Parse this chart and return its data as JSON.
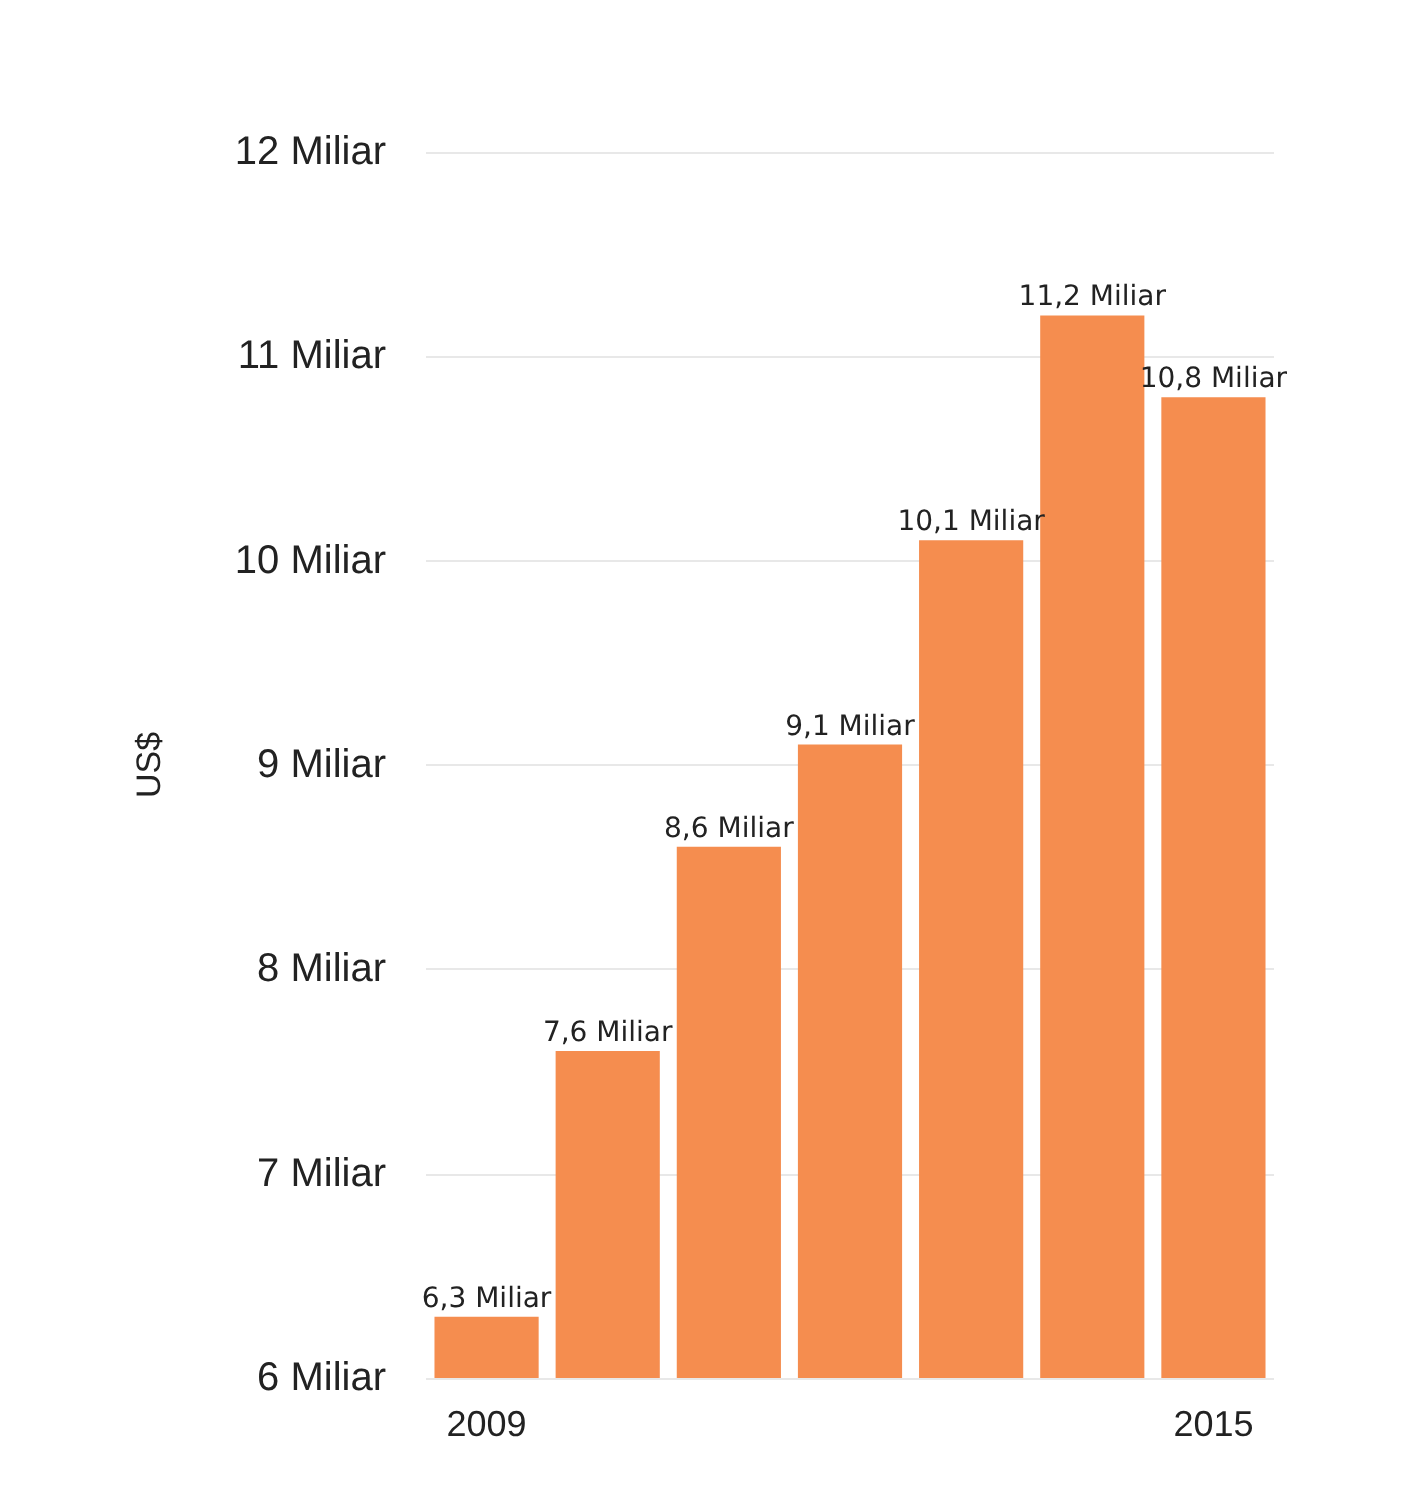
{
  "chart_data": {
    "type": "bar",
    "ylabel": "US$",
    "categories": [
      "2009",
      null,
      null,
      null,
      null,
      null,
      "2015"
    ],
    "values": [
      6.3,
      7.6,
      8.6,
      9.1,
      10.1,
      11.2,
      10.8
    ],
    "value_labels": [
      "6,3 Miliar",
      "7,6 Miliar",
      "8,6 Miliar",
      "9,1 Miliar",
      "10,1 Miliar",
      "11,2 Miliar",
      "10,8 Miliar"
    ],
    "color": "#f58d4f",
    "ylim": [
      6,
      12
    ],
    "yticks": [
      {
        "value": 6,
        "label": "6 Miliar"
      },
      {
        "value": 7,
        "label": "7 Miliar"
      },
      {
        "value": 8,
        "label": "8 Miliar"
      },
      {
        "value": 9,
        "label": "9 Miliar"
      },
      {
        "value": 10,
        "label": "10 Miliar"
      },
      {
        "value": 11,
        "label": "11 Miliar"
      },
      {
        "value": 12,
        "label": "12 Miliar"
      }
    ],
    "grid": "y"
  }
}
